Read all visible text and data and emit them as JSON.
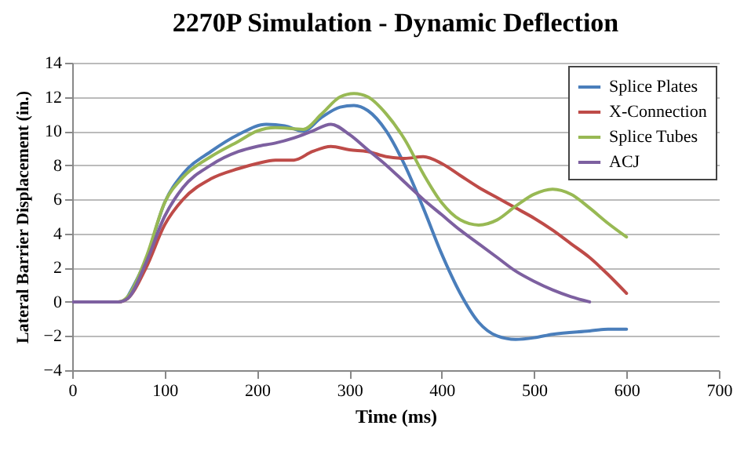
{
  "chart_data": {
    "type": "line",
    "title": "2270P Simulation - Dynamic Deflection",
    "xlabel": "Time (ms)",
    "ylabel": "Lateral Barrier Displacement (in.)",
    "xlim": [
      0,
      700
    ],
    "xticks": [
      0,
      100,
      200,
      300,
      400,
      500,
      600,
      700
    ],
    "ylim": [
      -4,
      14
    ],
    "yticks": [
      -4,
      -2,
      0,
      2,
      4,
      6,
      8,
      10,
      12,
      14
    ],
    "grid": "y",
    "legend": "top right",
    "marker": "none",
    "line_style": "solid",
    "series": [
      {
        "name": "Splice Plates",
        "color": "#4a7ebb",
        "x": [
          60,
          80,
          100,
          120,
          150,
          180,
          210,
          230,
          250,
          270,
          290,
          305,
          320,
          340,
          360,
          380,
          400,
          420,
          440,
          460,
          480,
          500,
          520,
          560,
          580,
          600
        ],
        "values": [
          0.3,
          2.5,
          5.8,
          7.5,
          8.8,
          9.8,
          10.4,
          10.3,
          10,
          10.8,
          11.4,
          11.5,
          11.2,
          10,
          8,
          5.5,
          2.8,
          0.5,
          -1.2,
          -2,
          -2.2,
          -2.1,
          -1.9,
          -1.7,
          -1.6,
          -1.6
        ]
      },
      {
        "name": "X-Connection",
        "color": "#be4b48",
        "x": [
          0,
          50,
          60,
          80,
          100,
          120,
          150,
          180,
          200,
          220,
          240,
          260,
          280,
          300,
          320,
          340,
          360,
          380,
          400,
          420,
          440,
          460,
          480,
          500,
          520,
          540,
          560,
          580,
          600
        ],
        "values": [
          0,
          0,
          0.2,
          2,
          4.5,
          6,
          7.2,
          7.8,
          8.1,
          8.3,
          8.3,
          8.8,
          9.1,
          8.9,
          8.8,
          8.5,
          8.4,
          8.5,
          8.1,
          7.4,
          6.7,
          6.1,
          5.5,
          4.9,
          4.2,
          3.4,
          2.6,
          1.6,
          0.5
        ]
      },
      {
        "name": "Splice Tubes",
        "color": "#98b954",
        "x": [
          0,
          50,
          60,
          80,
          100,
          120,
          150,
          180,
          200,
          220,
          250,
          270,
          290,
          305,
          320,
          340,
          360,
          380,
          400,
          420,
          440,
          460,
          480,
          500,
          520,
          540,
          560,
          580,
          600
        ],
        "values": [
          0,
          0,
          0.3,
          2.6,
          5.8,
          7.3,
          8.5,
          9.4,
          10,
          10.2,
          10.1,
          11,
          12,
          12.2,
          12,
          11,
          9.5,
          7.5,
          5.8,
          4.8,
          4.5,
          4.8,
          5.6,
          6.3,
          6.6,
          6.3,
          5.5,
          4.6,
          3.8
        ]
      },
      {
        "name": "ACJ",
        "color": "#7d60a0",
        "x": [
          0,
          50,
          60,
          80,
          100,
          120,
          150,
          180,
          200,
          220,
          240,
          260,
          280,
          300,
          320,
          340,
          360,
          380,
          400,
          420,
          440,
          460,
          480,
          500,
          520,
          540,
          560
        ],
        "values": [
          0,
          0,
          0.2,
          2.3,
          5,
          6.7,
          8,
          8.8,
          9.1,
          9.3,
          9.6,
          10,
          10.4,
          9.8,
          8.9,
          8,
          7,
          6,
          5.1,
          4.2,
          3.4,
          2.6,
          1.8,
          1.2,
          0.7,
          0.3,
          0
        ]
      }
    ]
  }
}
